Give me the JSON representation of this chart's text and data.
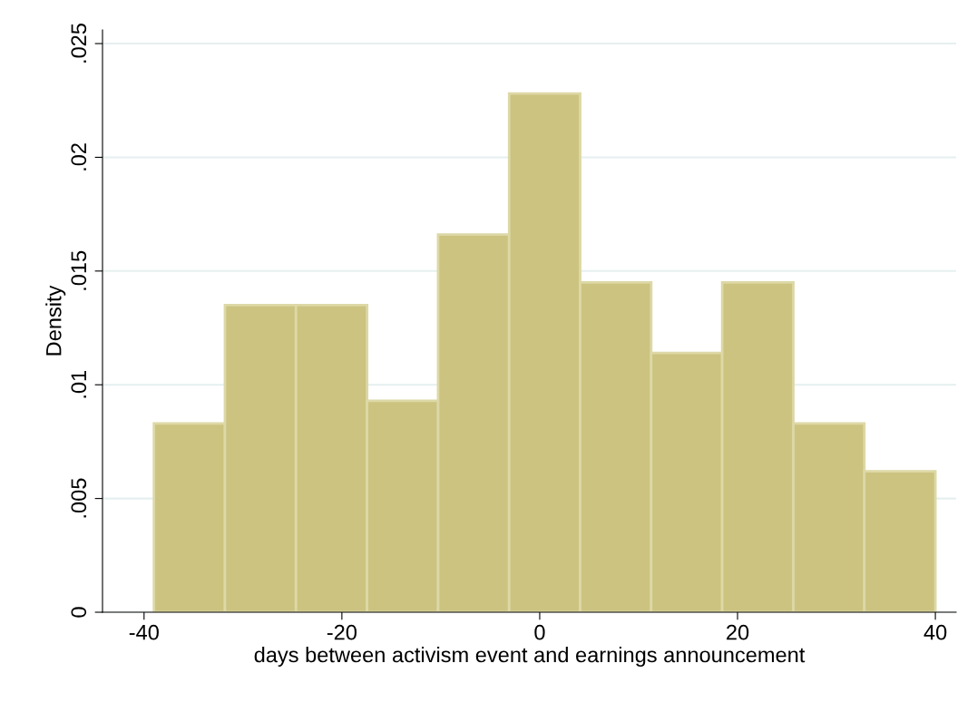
{
  "chart_data": {
    "type": "histogram",
    "xlabel": "days between activism event and earnings announcement",
    "ylabel": "Density",
    "bins": [
      -39,
      -31.82,
      -24.64,
      -17.45,
      -10.27,
      -3.09,
      4.09,
      11.27,
      18.45,
      25.64,
      32.82,
      40
    ],
    "values": [
      0.0083,
      0.0135,
      0.0135,
      0.0093,
      0.0166,
      0.0228,
      0.0145,
      0.0114,
      0.0145,
      0.0083,
      0.0062
    ],
    "color": "#cbc37f",
    "xlim": [
      -44.2,
      42.1
    ],
    "xticks": [
      -40,
      -20,
      0,
      20,
      40
    ],
    "ylim": [
      0,
      0.0256
    ],
    "yticks": [
      {
        "value": 0,
        "label": "0"
      },
      {
        "value": 0.005,
        "label": ".005"
      },
      {
        "value": 0.01,
        "label": ".01"
      },
      {
        "value": 0.015,
        "label": ".015"
      },
      {
        "value": 0.02,
        "label": ".02"
      },
      {
        "value": 0.025,
        "label": ".025"
      }
    ],
    "grid": "y"
  }
}
